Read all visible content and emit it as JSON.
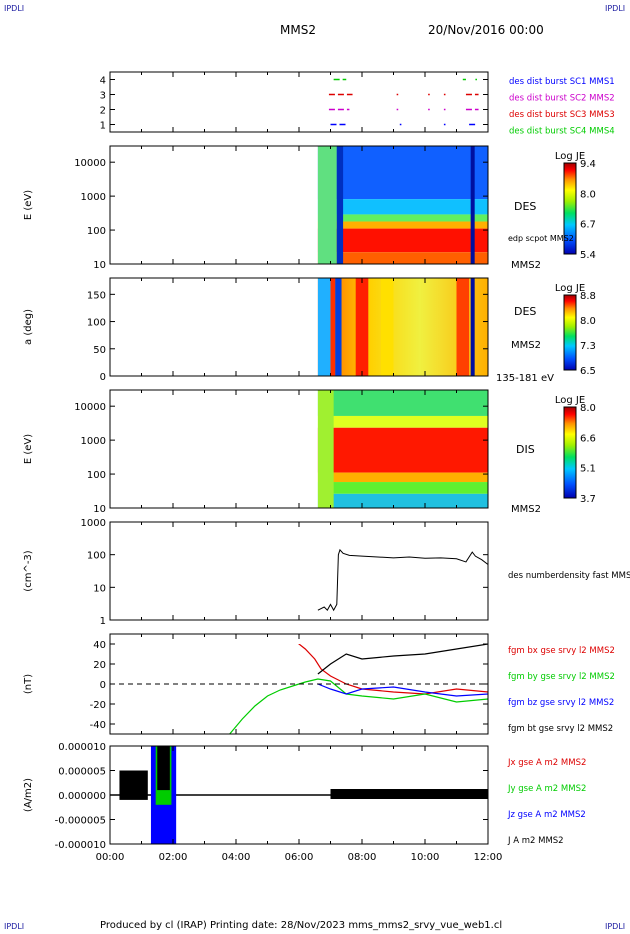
{
  "corners": {
    "top_left": "IPDLI",
    "top_right": "IPDLI",
    "bottom_left": "IPDLI",
    "bottom_right": "IPDLI"
  },
  "header": {
    "spacecraft": "MMS2",
    "datetime": "20/Nov/2016 00:00"
  },
  "footer": {
    "text": "Produced by cl (IRAP)   Printing date: 28/Nov/2023   mms_mms2_srvy_vue_web1.cl"
  },
  "colors": {
    "blue": "#0000ff",
    "magenta": "#cc00cc",
    "red": "#dd0000",
    "green": "#00cc00",
    "black": "#000000"
  },
  "chart_data": [
    {
      "type": "scatter",
      "name": "burst-availability",
      "ylim": [
        0.5,
        4.5
      ],
      "yticks": [
        "1",
        "2",
        "3",
        "4"
      ],
      "series": [
        {
          "name": "des dist burst SC1 MMS1",
          "color": "#0000ff",
          "y": 1,
          "segments": [
            [
              7.0,
              7.5
            ],
            [
              9.2,
              9.25
            ],
            [
              10.6,
              10.65
            ],
            [
              11.4,
              11.6
            ]
          ]
        },
        {
          "name": "des dist burst SC2 MMS2",
          "color": "#cc00cc",
          "y": 2,
          "segments": [
            [
              6.95,
              7.6
            ],
            [
              9.1,
              9.15
            ],
            [
              10.1,
              10.15
            ],
            [
              10.6,
              10.65
            ],
            [
              11.3,
              11.7
            ]
          ]
        },
        {
          "name": "des dist burst SC3 MMS3",
          "color": "#dd0000",
          "y": 3,
          "segments": [
            [
              6.95,
              7.7
            ],
            [
              9.1,
              9.15
            ],
            [
              10.1,
              10.15
            ],
            [
              10.6,
              10.65
            ],
            [
              11.3,
              11.7
            ]
          ]
        },
        {
          "name": "des dist burst SC4 MMS4",
          "color": "#00cc00",
          "y": 4,
          "segments": [
            [
              7.1,
              7.5
            ],
            [
              11.2,
              11.3
            ],
            [
              11.6,
              11.65
            ]
          ]
        }
      ]
    },
    {
      "type": "heatmap",
      "name": "des-energy",
      "instrument": "DES",
      "spacecraft": "MMS2",
      "ylabel": "E (eV)",
      "ylog": true,
      "ylim": [
        10,
        30000
      ],
      "yticks": [
        "10",
        "100",
        "1000",
        "10000"
      ],
      "overlay_label": "edp scpot MMS2",
      "colorbar": {
        "title": "Log JE",
        "ticks": [
          "9.4",
          "8.0",
          "6.7",
          "5.4"
        ]
      },
      "data_start_hour": 6.6
    },
    {
      "type": "heatmap",
      "name": "des-pitch",
      "instrument": "DES",
      "spacecraft": "MMS2",
      "ylabel": "a (deg)",
      "ylim": [
        0,
        180
      ],
      "yticks": [
        "0",
        "50",
        "100",
        "150"
      ],
      "energy_range": "135-181 eV",
      "colorbar": {
        "title": "Log JE",
        "ticks": [
          "8.8",
          "8.0",
          "7.3",
          "6.5"
        ]
      },
      "data_start_hour": 6.6
    },
    {
      "type": "heatmap",
      "name": "dis-energy",
      "instrument": "DIS",
      "spacecraft": "MMS2",
      "ylabel": "E (eV)",
      "ylog": true,
      "ylim": [
        10,
        30000
      ],
      "yticks": [
        "10",
        "100",
        "1000",
        "10000"
      ],
      "colorbar": {
        "title": "Log JE",
        "ticks": [
          "8.0",
          "6.6",
          "5.1",
          "3.7"
        ]
      },
      "data_start_hour": 6.6
    },
    {
      "type": "line",
      "name": "density",
      "ylabel": "(cm^-3)",
      "ylog": true,
      "ylim": [
        1,
        1000
      ],
      "yticks": [
        "1",
        "10",
        "100",
        "1000"
      ],
      "series": [
        {
          "name": "des numberdensity fast MMS2",
          "color": "#000000",
          "x": [
            6.6,
            6.8,
            6.9,
            7.0,
            7.1,
            7.2,
            7.25,
            7.3,
            7.4,
            7.6,
            8.0,
            8.5,
            9.0,
            9.5,
            10.0,
            10.5,
            11.0,
            11.3,
            11.5,
            11.6,
            11.8,
            12.0
          ],
          "y": [
            2,
            2.5,
            2,
            3,
            2,
            3,
            100,
            140,
            110,
            95,
            90,
            85,
            80,
            85,
            78,
            80,
            75,
            60,
            120,
            90,
            70,
            50
          ]
        }
      ]
    },
    {
      "type": "line",
      "name": "magnetic-field",
      "ylabel": "(nT)",
      "ylim": [
        -50,
        50
      ],
      "yticks": [
        "-40",
        "-20",
        "0",
        "20",
        "40"
      ],
      "series": [
        {
          "name": "fgm bx gse srvy l2 MMS2",
          "color": "#dd0000",
          "x": [
            5.4,
            5.8,
            6.2,
            6.5,
            6.7,
            7.0,
            7.5,
            8.0,
            9.0,
            10.0,
            11.0,
            12.0
          ],
          "y": [
            50,
            45,
            35,
            25,
            15,
            8,
            0,
            -5,
            -8,
            -10,
            -5,
            -8
          ]
        },
        {
          "name": "fgm by gse srvy l2 MMS2",
          "color": "#00cc00",
          "x": [
            3.8,
            4.2,
            4.6,
            5.0,
            5.4,
            5.8,
            6.2,
            6.6,
            7.0,
            7.5,
            8.0,
            9.0,
            10.0,
            11.0,
            12.0
          ],
          "y": [
            -50,
            -35,
            -22,
            -12,
            -6,
            -2,
            2,
            5,
            3,
            -10,
            -12,
            -15,
            -10,
            -18,
            -15
          ]
        },
        {
          "name": "fgm bz gse srvy l2 MMS2",
          "color": "#0000ff",
          "x": [
            6.6,
            7.0,
            7.5,
            8.0,
            9.0,
            10.0,
            11.0,
            12.0
          ],
          "y": [
            0,
            -5,
            -10,
            -5,
            -3,
            -8,
            -12,
            -10
          ]
        },
        {
          "name": "fgm bt gse srvy l2 MMS2",
          "color": "#000000",
          "x": [
            6.6,
            7.0,
            7.5,
            8.0,
            9.0,
            10.0,
            11.0,
            12.0
          ],
          "y": [
            10,
            20,
            30,
            25,
            28,
            30,
            35,
            40
          ]
        }
      ]
    },
    {
      "type": "line",
      "name": "current-density",
      "ylabel": "(A/m2)",
      "ylim": [
        -1e-05,
        1e-05
      ],
      "yticks": [
        "-0.000010",
        "-0.000005",
        "0.000000",
        "0.000005",
        "0.000010"
      ],
      "xlim_hours": [
        0,
        12
      ],
      "xticks": [
        "00:00",
        "02:00",
        "04:00",
        "06:00",
        "08:00",
        "10:00",
        "12:00"
      ],
      "series": [
        {
          "name": "Jx gse A m2 MMS2",
          "color": "#dd0000"
        },
        {
          "name": "Jy gse A m2 MMS2",
          "color": "#00cc00"
        },
        {
          "name": "Jz gse A m2 MMS2",
          "color": "#0000ff"
        },
        {
          "name": "J A m2 MMS2",
          "color": "#000000"
        }
      ]
    }
  ]
}
